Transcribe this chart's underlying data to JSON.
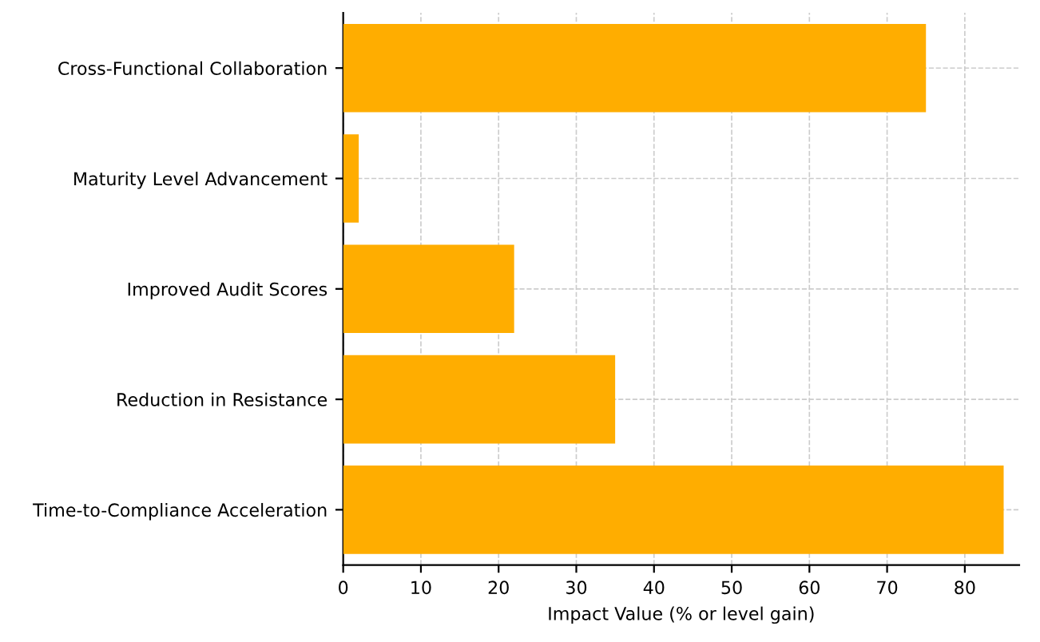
{
  "chart_data": {
    "type": "bar",
    "orientation": "horizontal",
    "xlabel": "Impact Value (% or level gain)",
    "categories": [
      "Cross-Functional Collaboration",
      "Maturity Level Advancement",
      "Improved Audit Scores",
      "Reduction in Resistance",
      "Time-to-Compliance Acceleration"
    ],
    "values": [
      75,
      2,
      22,
      35,
      85
    ],
    "color": "#ffad00",
    "xlim": [
      0,
      87
    ],
    "xticks": [
      0,
      10,
      20,
      30,
      40,
      50,
      60,
      70,
      80
    ],
    "grid": true
  }
}
